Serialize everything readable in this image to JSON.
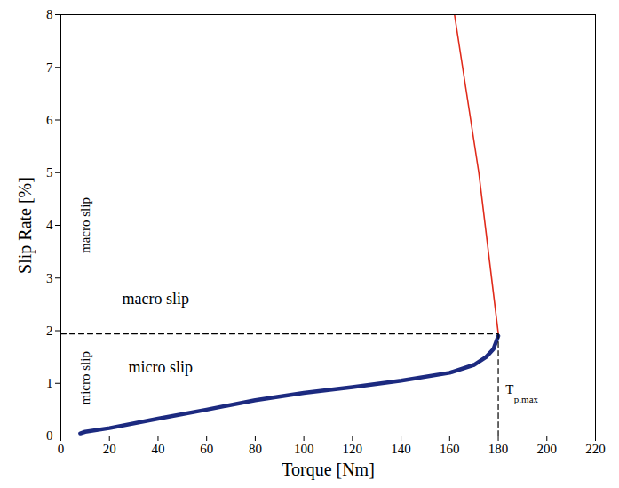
{
  "chart_data": {
    "type": "line",
    "xlabel": "Torque [Nm]",
    "ylabel": "Slip Rate [%]",
    "xlim": [
      0,
      220
    ],
    "xticks": [
      0,
      20,
      40,
      60,
      80,
      100,
      120,
      140,
      160,
      180,
      200,
      220
    ],
    "ylim": [
      0,
      8
    ],
    "yticks": [
      0,
      1,
      2,
      3,
      4,
      5,
      6,
      7,
      8
    ],
    "grid": false,
    "series": [
      {
        "color": "#1c2a80",
        "line_style": "solid",
        "x": [
          8,
          10,
          20,
          40,
          60,
          80,
          100,
          120,
          140,
          160,
          170,
          175,
          178,
          180
        ],
        "values": [
          0.05,
          0.08,
          0.15,
          0.33,
          0.5,
          0.68,
          0.82,
          0.93,
          1.05,
          1.2,
          1.35,
          1.5,
          1.65,
          1.9
        ]
      },
      {
        "color": "#e02a1a",
        "line_style": "solid",
        "x": [
          180,
          172,
          162
        ],
        "values": [
          1.95,
          5,
          8
        ]
      },
      {
        "color": "#000000",
        "line_style": "dashed",
        "x": [
          0,
          180
        ],
        "values": [
          1.94,
          1.94
        ]
      },
      {
        "color": "#000000",
        "line_style": "dashed",
        "x": [
          180,
          180
        ],
        "values": [
          0,
          1.94
        ]
      }
    ],
    "annotations": [
      {
        "text": "macro slip",
        "x": 10,
        "y": 4.0,
        "vertical": true
      },
      {
        "text": "micro slip",
        "x": 10,
        "y": 1.1,
        "vertical": true
      },
      {
        "text": "macro slip",
        "x": 39,
        "y": 2.6,
        "vertical": false
      },
      {
        "text": "micro slip",
        "x": 41,
        "y": 1.3,
        "vertical": false
      },
      {
        "text": "T",
        "x": 183,
        "y": 0.88,
        "vertical": false
      },
      {
        "text": "p.max",
        "x": 186.5,
        "y": 0.7,
        "vertical": false
      }
    ]
  }
}
